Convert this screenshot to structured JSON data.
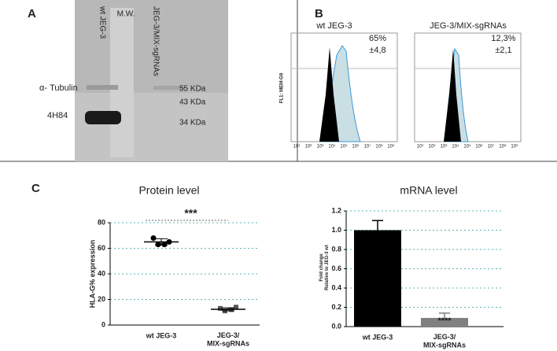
{
  "panel_a": {
    "label": "A",
    "lanes": [
      "wt JEG-3",
      "M.W.",
      "JEG-3/MIX-sgRNAs"
    ],
    "bands": [
      "α- Tubulin",
      "4H84"
    ],
    "markers": [
      "55 KDa",
      "43 KDa",
      "34 KDa"
    ]
  },
  "panel_b": {
    "label": "B",
    "y_label": "FL1: MEM-G9",
    "x_tick_labels": [
      "10¹",
      "10²",
      "10³",
      "10⁴",
      "10⁵",
      "10⁶",
      "10⁷",
      "10⁸",
      "10⁹"
    ],
    "plots": [
      {
        "title": "wt JEG-3",
        "percent": "65%",
        "sd": "±4,8"
      },
      {
        "title": "JEG-3/MIX-sgRNAs",
        "percent": "12,3%",
        "sd": "±2,1"
      }
    ]
  },
  "panel_c": {
    "label": "C"
  },
  "chart_data": [
    {
      "type": "strip",
      "title": "Protein level",
      "y_label": "HLA-G% expression",
      "categories": [
        "wt JEG-3",
        "JEG-3/\nMIX-sgRNAs"
      ],
      "values": [
        [
          68,
          63,
          63,
          65
        ],
        [
          13,
          11,
          12,
          14
        ]
      ],
      "means": [
        65,
        12.3
      ],
      "errors": [
        2.5,
        1.2
      ],
      "annotation": "***",
      "ylim": [
        0,
        80
      ],
      "yticks": [
        0,
        20,
        40,
        60,
        80
      ],
      "grid": true,
      "color": "#000000"
    },
    {
      "type": "bar",
      "title": "mRNA level",
      "y_label": "Fold change\nRelative to JEG-3 wt",
      "categories": [
        "wt JEG-3",
        "JEG-3/\nMIX-sgRNAs"
      ],
      "values": [
        1.0,
        0.09
      ],
      "errors": [
        0.1,
        0.05
      ],
      "colors": [
        "#000000",
        "#808080"
      ],
      "annotation": "****",
      "ylim": [
        0,
        1.2
      ],
      "yticks": [
        {
          "value": 0,
          "label": "0.0"
        },
        {
          "value": 0.2,
          "label": "0.2"
        },
        {
          "value": 0.4,
          "label": "0.4"
        },
        {
          "value": 0.6,
          "label": "0.6"
        },
        {
          "value": 0.8,
          "label": "0.8"
        },
        {
          "value": 1.0,
          "label": "1.0"
        },
        {
          "value": 1.2,
          "label": "1.2"
        }
      ],
      "grid": true
    }
  ]
}
